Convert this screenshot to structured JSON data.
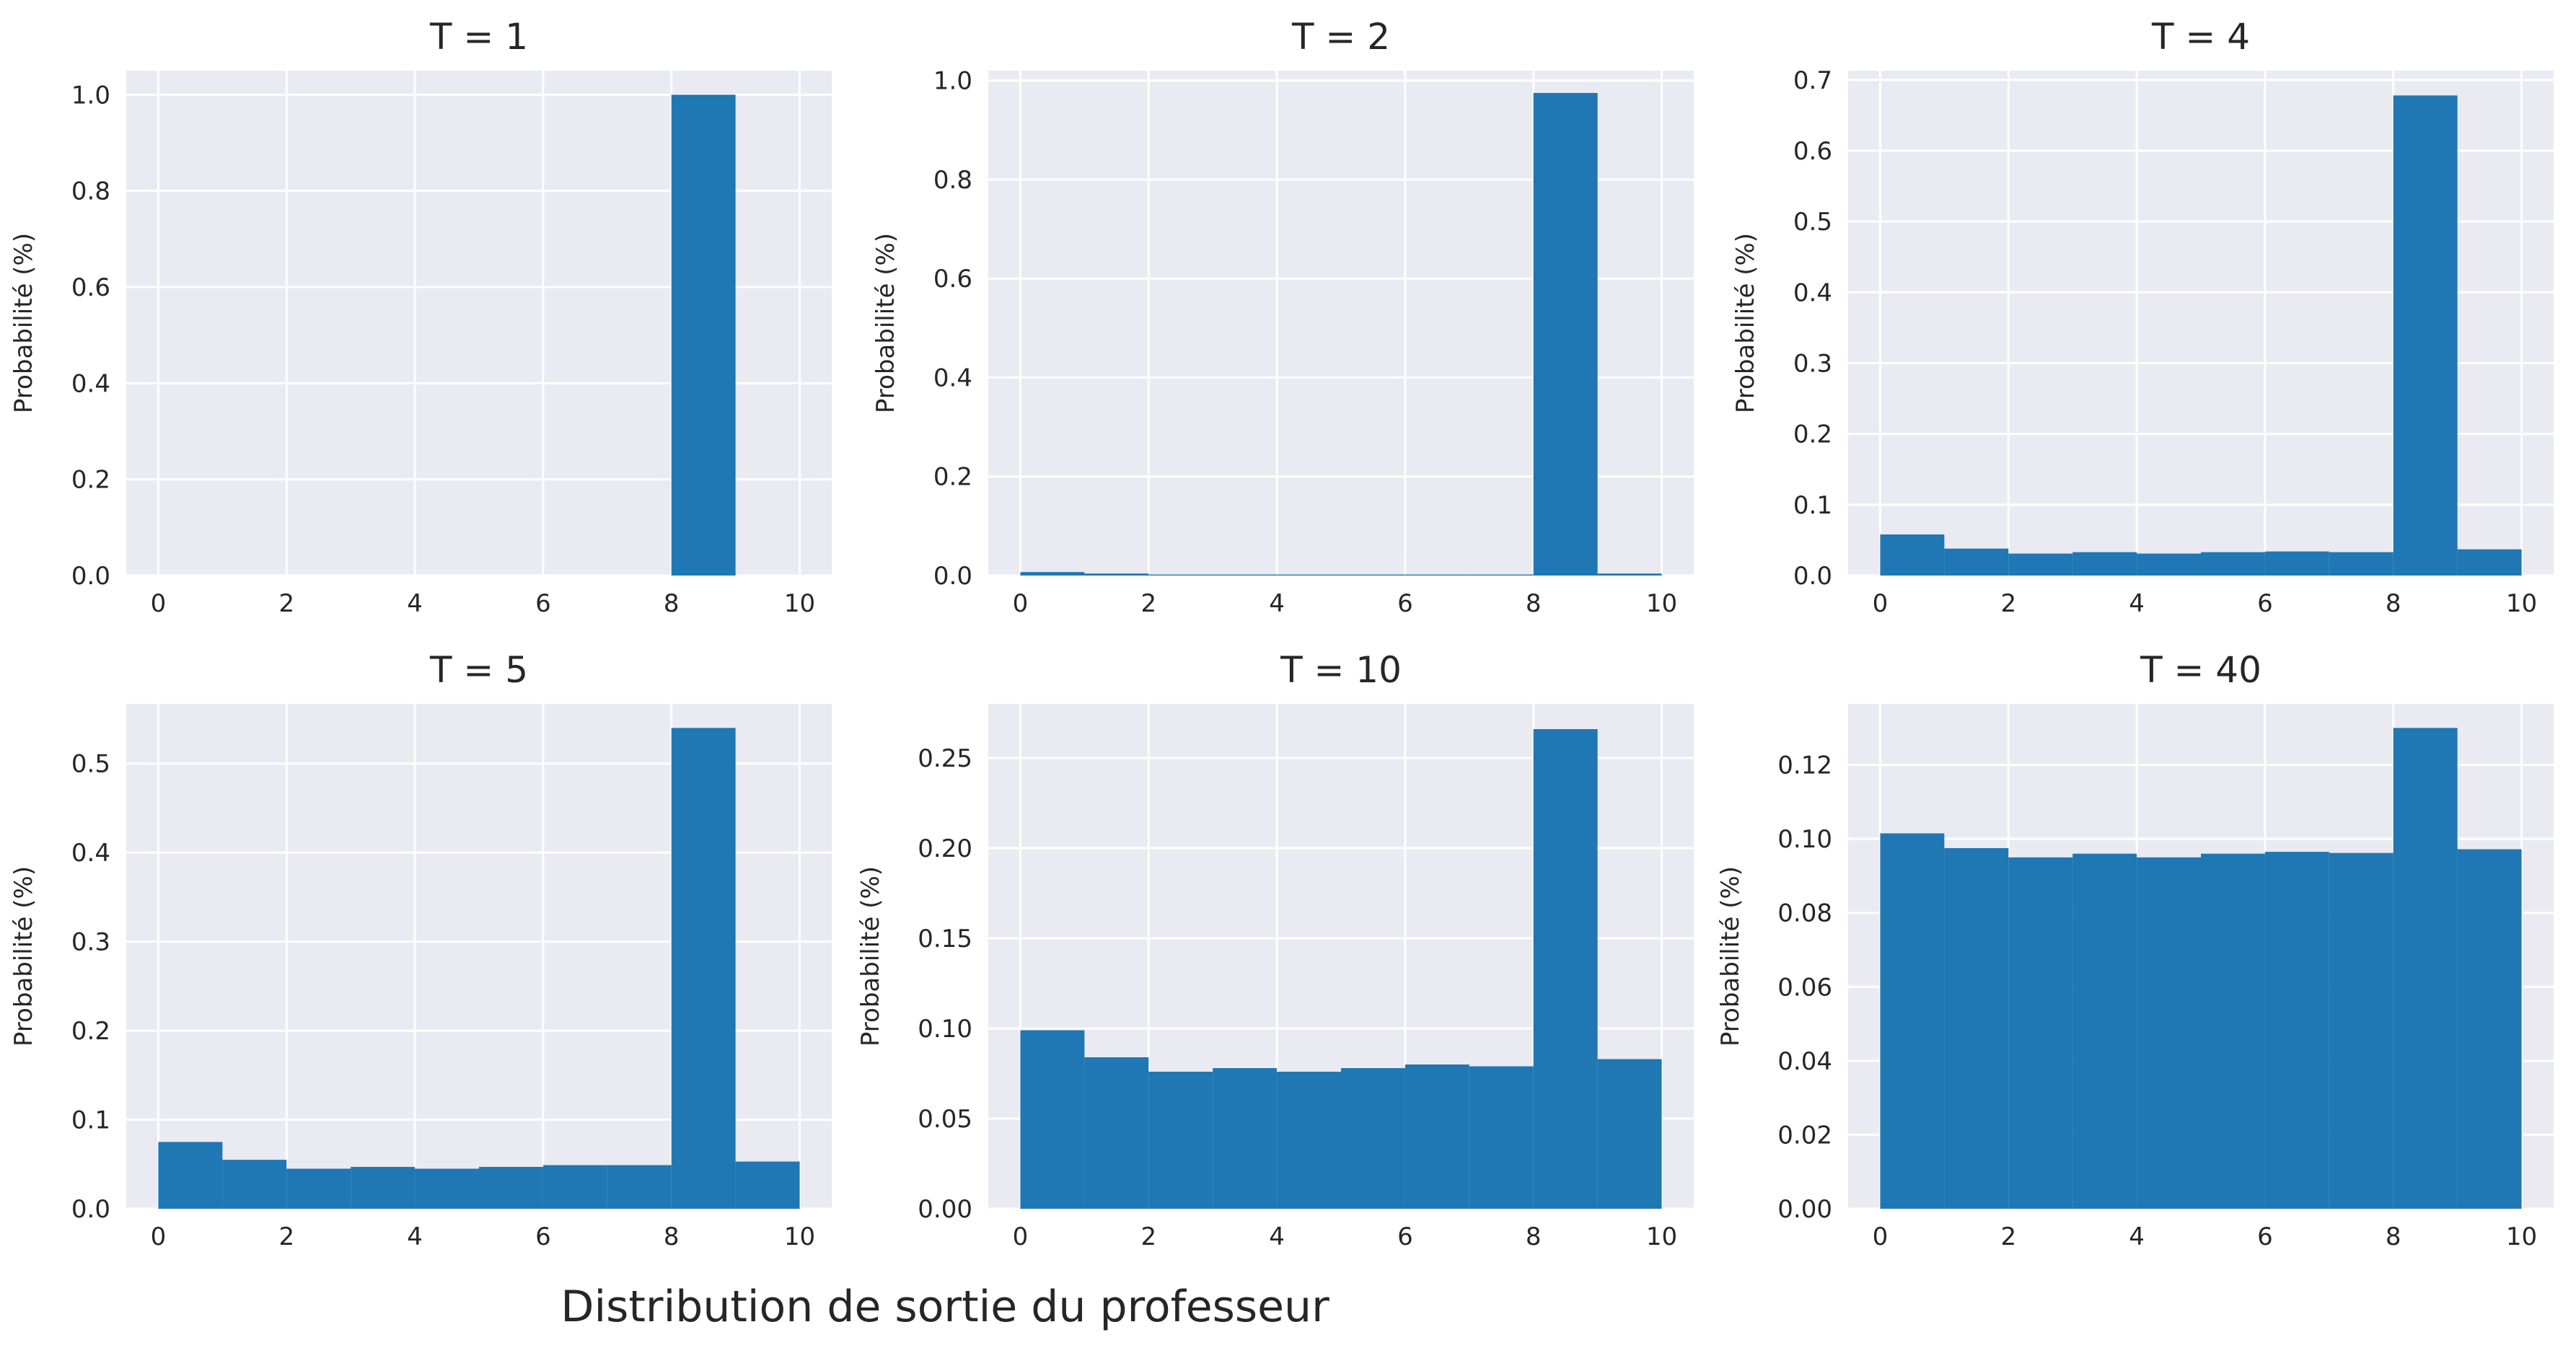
{
  "figure": {
    "suptitle": "Distribution de sortie du professeur",
    "colors": {
      "bar": "#1f77b4",
      "axes_bg": "#eaeaf2",
      "grid": "#ffffff"
    }
  },
  "chart_data": [
    {
      "type": "bar",
      "title": "T = 1",
      "ylabel": "Probabilité (%)",
      "xlabel": "",
      "bin_edges": [
        0,
        1,
        2,
        3,
        4,
        5,
        6,
        7,
        8,
        9,
        10
      ],
      "values": [
        0,
        0,
        0,
        0,
        0,
        0,
        0,
        0,
        1.0,
        0
      ],
      "xlim": [
        -0.5,
        10.5
      ],
      "ylim": [
        0,
        1.05
      ],
      "xticks": [
        0,
        2,
        4,
        6,
        8,
        10
      ],
      "yticks": [
        0.0,
        0.2,
        0.4,
        0.6,
        0.8,
        1.0
      ],
      "ytick_labels": [
        "0.0",
        "0.2",
        "0.4",
        "0.6",
        "0.8",
        "1.0"
      ],
      "grid": true
    },
    {
      "type": "bar",
      "title": "T = 2",
      "ylabel": "Probabilité (%)",
      "xlabel": "",
      "bin_edges": [
        0,
        1,
        2,
        3,
        4,
        5,
        6,
        7,
        8,
        9,
        10
      ],
      "values": [
        0.007,
        0.004,
        0.002,
        0.002,
        0.002,
        0.002,
        0.002,
        0.002,
        0.975,
        0.004
      ],
      "xlim": [
        -0.5,
        10.5
      ],
      "ylim": [
        0,
        1.02
      ],
      "xticks": [
        0,
        2,
        4,
        6,
        8,
        10
      ],
      "yticks": [
        0.0,
        0.2,
        0.4,
        0.6,
        0.8,
        1.0
      ],
      "ytick_labels": [
        "0.0",
        "0.2",
        "0.4",
        "0.6",
        "0.8",
        "1.0"
      ],
      "grid": true
    },
    {
      "type": "bar",
      "title": "T = 4",
      "ylabel": "Probabilité (%)",
      "xlabel": "",
      "bin_edges": [
        0,
        1,
        2,
        3,
        4,
        5,
        6,
        7,
        8,
        9,
        10
      ],
      "values": [
        0.058,
        0.038,
        0.031,
        0.033,
        0.031,
        0.033,
        0.034,
        0.033,
        0.678,
        0.037
      ],
      "xlim": [
        -0.5,
        10.5
      ],
      "ylim": [
        0,
        0.713
      ],
      "xticks": [
        0,
        2,
        4,
        6,
        8,
        10
      ],
      "yticks": [
        0.0,
        0.1,
        0.2,
        0.3,
        0.4,
        0.5,
        0.6,
        0.7
      ],
      "ytick_labels": [
        "0.0",
        "0.1",
        "0.2",
        "0.3",
        "0.4",
        "0.5",
        "0.6",
        "0.7"
      ],
      "grid": true
    },
    {
      "type": "bar",
      "title": "T = 5",
      "ylabel": "Probabilité (%)",
      "xlabel": "",
      "bin_edges": [
        0,
        1,
        2,
        3,
        4,
        5,
        6,
        7,
        8,
        9,
        10
      ],
      "values": [
        0.075,
        0.055,
        0.045,
        0.047,
        0.045,
        0.047,
        0.049,
        0.049,
        0.54,
        0.053
      ],
      "xlim": [
        -0.5,
        10.5
      ],
      "ylim": [
        0,
        0.567
      ],
      "xticks": [
        0,
        2,
        4,
        6,
        8,
        10
      ],
      "yticks": [
        0.0,
        0.1,
        0.2,
        0.3,
        0.4,
        0.5
      ],
      "ytick_labels": [
        "0.0",
        "0.1",
        "0.2",
        "0.3",
        "0.4",
        "0.5"
      ],
      "grid": true
    },
    {
      "type": "bar",
      "title": "T = 10",
      "ylabel": "Probabilité (%)",
      "xlabel": "",
      "bin_edges": [
        0,
        1,
        2,
        3,
        4,
        5,
        6,
        7,
        8,
        9,
        10
      ],
      "values": [
        0.099,
        0.084,
        0.076,
        0.078,
        0.076,
        0.078,
        0.08,
        0.079,
        0.266,
        0.083
      ],
      "xlim": [
        -0.5,
        10.5
      ],
      "ylim": [
        0,
        0.28
      ],
      "xticks": [
        0,
        2,
        4,
        6,
        8,
        10
      ],
      "yticks": [
        0.0,
        0.05,
        0.1,
        0.15,
        0.2,
        0.25
      ],
      "ytick_labels": [
        "0.00",
        "0.05",
        "0.10",
        "0.15",
        "0.20",
        "0.25"
      ],
      "grid": true
    },
    {
      "type": "bar",
      "title": "T = 40",
      "ylabel": "Probabilité (%)",
      "xlabel": "",
      "bin_edges": [
        0,
        1,
        2,
        3,
        4,
        5,
        6,
        7,
        8,
        9,
        10
      ],
      "values": [
        0.1015,
        0.0975,
        0.095,
        0.096,
        0.095,
        0.096,
        0.0965,
        0.0962,
        0.13,
        0.0972
      ],
      "xlim": [
        -0.5,
        10.5
      ],
      "ylim": [
        0,
        0.1365
      ],
      "xticks": [
        0,
        2,
        4,
        6,
        8,
        10
      ],
      "yticks": [
        0.0,
        0.02,
        0.04,
        0.06,
        0.08,
        0.1,
        0.12
      ],
      "ytick_labels": [
        "0.00",
        "0.02",
        "0.04",
        "0.06",
        "0.08",
        "0.10",
        "0.12"
      ],
      "grid": true
    }
  ]
}
